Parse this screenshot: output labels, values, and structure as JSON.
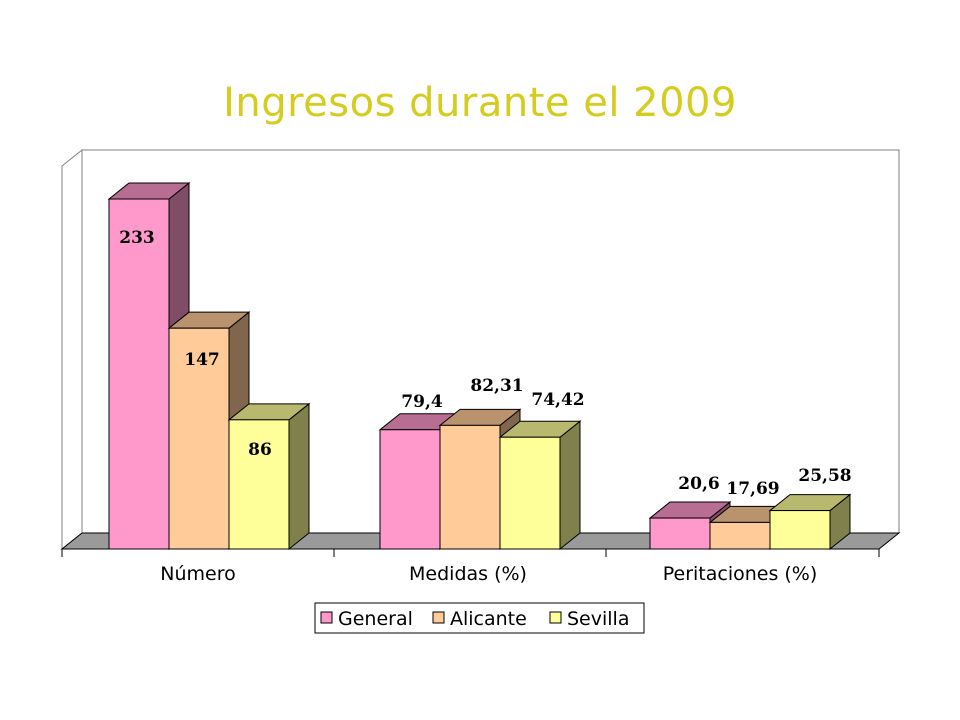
{
  "chart_data": {
    "type": "bar",
    "title": "Ingresos durante el 2009",
    "categories": [
      "Número",
      "Medidas (%)",
      "Peritaciones (%)"
    ],
    "series": [
      {
        "name": "General",
        "values": [
          233,
          79.4,
          20.6
        ],
        "labels": [
          "233",
          "79,4",
          "20,6"
        ],
        "color": "#ff99cc"
      },
      {
        "name": "Alicante",
        "values": [
          147,
          82.31,
          17.69
        ],
        "labels": [
          "147",
          "82,31",
          "17,69"
        ],
        "color": "#ffcc99"
      },
      {
        "name": "Sevilla",
        "values": [
          86,
          74.42,
          25.58
        ],
        "labels": [
          "86",
          "74,42",
          "25,58"
        ],
        "color": "#ffff99"
      }
    ],
    "ylim": [
      0,
      233
    ],
    "grid": false,
    "legend_position": "bottom"
  }
}
